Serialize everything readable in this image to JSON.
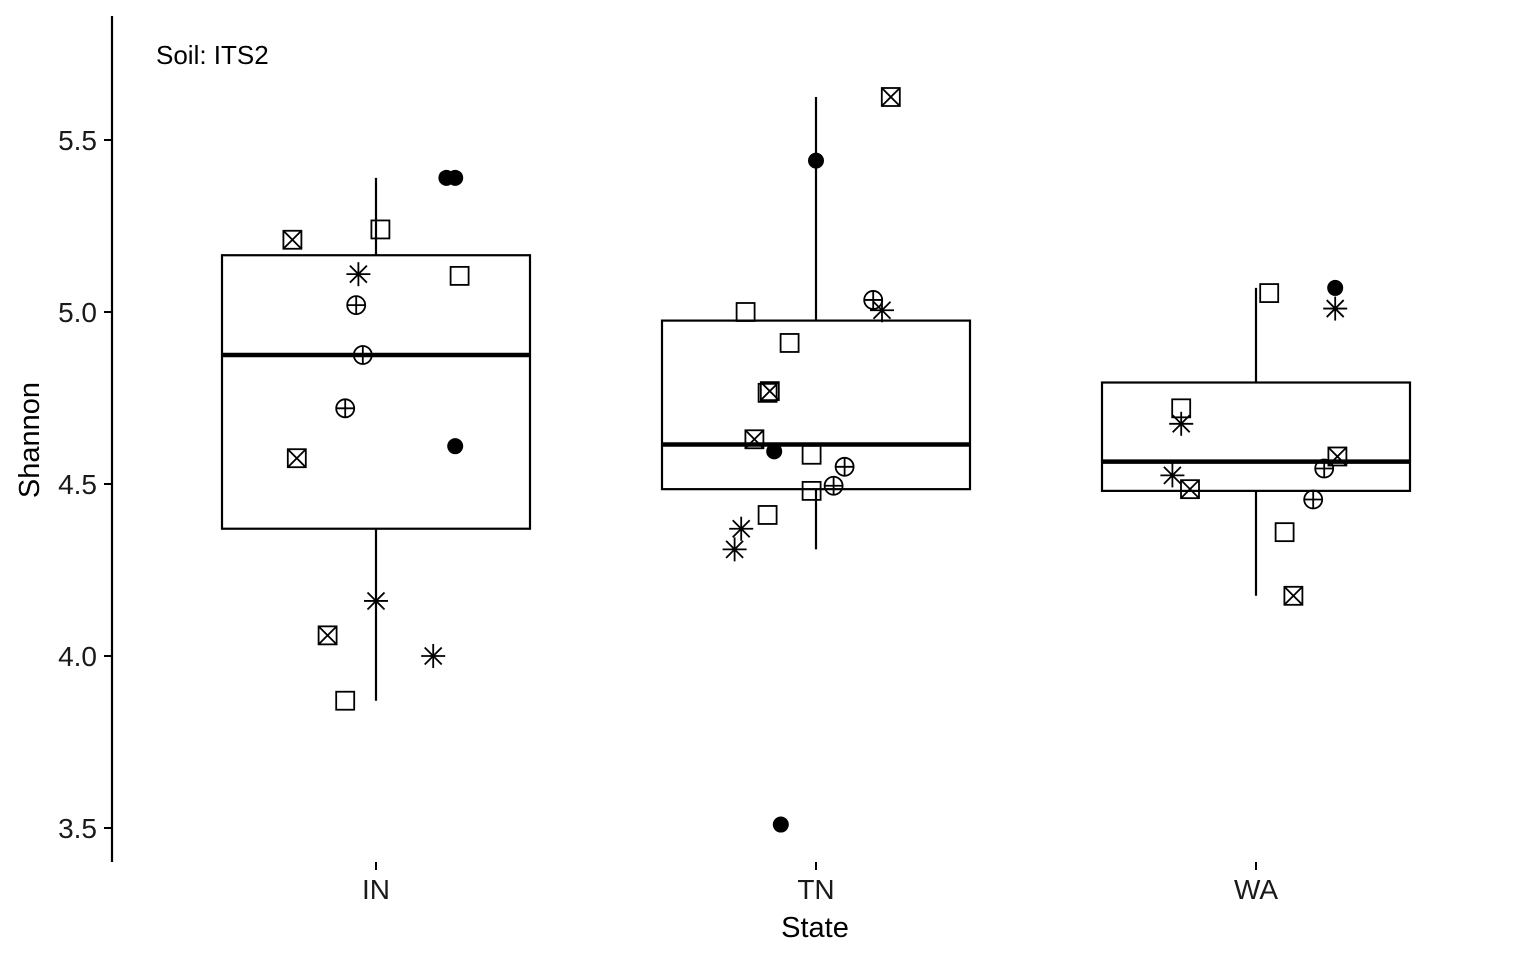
{
  "chart_data": {
    "type": "box",
    "annotation": "Soil: ITS2",
    "xlabel": "State",
    "ylabel": "Shannon",
    "ylim": [
      3.4,
      5.78
    ],
    "yticks": [
      "3.5",
      "4.0",
      "4.5",
      "5.0",
      "5.5"
    ],
    "categories": [
      "IN",
      "TN",
      "WA"
    ],
    "grid": false,
    "legend": "none",
    "boxes": [
      {
        "category": "IN",
        "whisker_low": 3.87,
        "q1": 4.37,
        "median": 4.875,
        "q3": 5.165,
        "whisker_high": 5.39
      },
      {
        "category": "TN",
        "whisker_low": 4.31,
        "q1": 4.485,
        "median": 4.615,
        "q3": 4.975,
        "whisker_high": 5.625
      },
      {
        "category": "WA",
        "whisker_low": 4.175,
        "q1": 4.48,
        "median": 4.565,
        "q3": 4.795,
        "whisker_high": 5.07
      }
    ],
    "points": [
      {
        "category": "IN",
        "offset": -0.19,
        "y": 5.21,
        "shape": "boxcross"
      },
      {
        "category": "IN",
        "offset": 0.01,
        "y": 5.24,
        "shape": "square"
      },
      {
        "category": "IN",
        "offset": 0.18,
        "y": 5.39,
        "shape": "circle"
      },
      {
        "category": "IN",
        "offset": 0.16,
        "y": 5.39,
        "shape": "circle"
      },
      {
        "category": "IN",
        "offset": -0.04,
        "y": 5.11,
        "shape": "asterisk"
      },
      {
        "category": "IN",
        "offset": 0.19,
        "y": 5.105,
        "shape": "square"
      },
      {
        "category": "IN",
        "offset": -0.045,
        "y": 5.02,
        "shape": "circleplus"
      },
      {
        "category": "IN",
        "offset": -0.03,
        "y": 4.875,
        "shape": "circleplus"
      },
      {
        "category": "IN",
        "offset": -0.07,
        "y": 4.72,
        "shape": "circleplus"
      },
      {
        "category": "IN",
        "offset": 0.18,
        "y": 4.61,
        "shape": "circle"
      },
      {
        "category": "IN",
        "offset": -0.18,
        "y": 4.575,
        "shape": "boxcross"
      },
      {
        "category": "IN",
        "offset": 0.0,
        "y": 4.16,
        "shape": "asterisk"
      },
      {
        "category": "IN",
        "offset": -0.11,
        "y": 4.06,
        "shape": "boxcross"
      },
      {
        "category": "IN",
        "offset": 0.13,
        "y": 4.0,
        "shape": "asterisk"
      },
      {
        "category": "IN",
        "offset": -0.07,
        "y": 3.87,
        "shape": "square"
      },
      {
        "category": "TN",
        "offset": 0.17,
        "y": 5.625,
        "shape": "boxcross"
      },
      {
        "category": "TN",
        "offset": 0.0,
        "y": 5.44,
        "shape": "circle"
      },
      {
        "category": "TN",
        "offset": 0.13,
        "y": 5.035,
        "shape": "circleplus"
      },
      {
        "category": "TN",
        "offset": 0.15,
        "y": 5.005,
        "shape": "asterisk"
      },
      {
        "category": "TN",
        "offset": -0.16,
        "y": 5.0,
        "shape": "square"
      },
      {
        "category": "TN",
        "offset": -0.06,
        "y": 4.91,
        "shape": "square"
      },
      {
        "category": "TN",
        "offset": -0.11,
        "y": 4.765,
        "shape": "square"
      },
      {
        "category": "TN",
        "offset": -0.105,
        "y": 4.77,
        "shape": "boxcross"
      },
      {
        "category": "TN",
        "offset": -0.14,
        "y": 4.63,
        "shape": "boxcross"
      },
      {
        "category": "TN",
        "offset": -0.095,
        "y": 4.595,
        "shape": "circle"
      },
      {
        "category": "TN",
        "offset": -0.01,
        "y": 4.585,
        "shape": "square"
      },
      {
        "category": "TN",
        "offset": 0.065,
        "y": 4.55,
        "shape": "circleplus"
      },
      {
        "category": "TN",
        "offset": 0.04,
        "y": 4.495,
        "shape": "circleplus"
      },
      {
        "category": "TN",
        "offset": -0.01,
        "y": 4.48,
        "shape": "square"
      },
      {
        "category": "TN",
        "offset": -0.11,
        "y": 4.41,
        "shape": "square"
      },
      {
        "category": "TN",
        "offset": -0.17,
        "y": 4.37,
        "shape": "asterisk"
      },
      {
        "category": "TN",
        "offset": -0.185,
        "y": 4.31,
        "shape": "asterisk"
      },
      {
        "category": "TN",
        "offset": -0.08,
        "y": 3.51,
        "shape": "circle"
      },
      {
        "category": "WA",
        "offset": 0.18,
        "y": 5.07,
        "shape": "circle"
      },
      {
        "category": "WA",
        "offset": 0.03,
        "y": 5.055,
        "shape": "square"
      },
      {
        "category": "WA",
        "offset": 0.18,
        "y": 5.01,
        "shape": "asterisk"
      },
      {
        "category": "WA",
        "offset": -0.17,
        "y": 4.675,
        "shape": "asterisk"
      },
      {
        "category": "WA",
        "offset": -0.17,
        "y": 4.72,
        "shape": "square"
      },
      {
        "category": "WA",
        "offset": 0.185,
        "y": 4.58,
        "shape": "boxcross"
      },
      {
        "category": "WA",
        "offset": 0.155,
        "y": 4.545,
        "shape": "circleplus"
      },
      {
        "category": "WA",
        "offset": -0.19,
        "y": 4.525,
        "shape": "asterisk"
      },
      {
        "category": "WA",
        "offset": -0.15,
        "y": 4.485,
        "shape": "boxcross"
      },
      {
        "category": "WA",
        "offset": 0.13,
        "y": 4.455,
        "shape": "circleplus"
      },
      {
        "category": "WA",
        "offset": 0.065,
        "y": 4.36,
        "shape": "square"
      },
      {
        "category": "WA",
        "offset": 0.085,
        "y": 4.175,
        "shape": "boxcross"
      }
    ]
  }
}
